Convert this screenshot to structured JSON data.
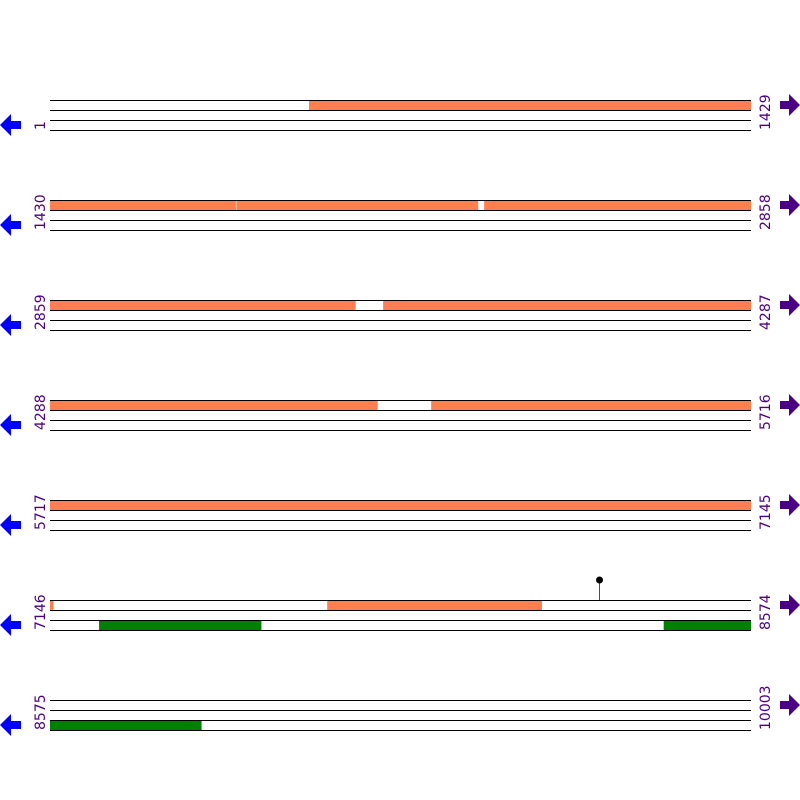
{
  "colors": {
    "orange": "#ff7f50",
    "green": "#008000",
    "left_arrow": "#0000ff",
    "right_arrow": "#4b0082",
    "label": "#4b0082",
    "marker_stem": "#ff0000"
  },
  "rows": [
    {
      "start": 1,
      "end": 1429,
      "top": [
        {
          "from": 529,
          "to": 1429,
          "color": "orange"
        }
      ],
      "bottom": []
    },
    {
      "start": 1430,
      "end": 2858,
      "top": [
        {
          "from": 1430,
          "to": 1808,
          "color": "orange"
        },
        {
          "from": 1810,
          "to": 2302,
          "color": "orange"
        },
        {
          "from": 2315,
          "to": 2858,
          "color": "orange"
        }
      ],
      "bottom": []
    },
    {
      "start": 2859,
      "end": 4287,
      "top": [
        {
          "from": 2859,
          "to": 3481,
          "color": "orange"
        },
        {
          "from": 3538,
          "to": 4287,
          "color": "orange"
        }
      ],
      "bottom": []
    },
    {
      "start": 4288,
      "end": 5716,
      "top": [
        {
          "from": 4288,
          "to": 4955,
          "color": "orange"
        },
        {
          "from": 5065,
          "to": 5716,
          "color": "orange"
        }
      ],
      "bottom": []
    },
    {
      "start": 5717,
      "end": 7145,
      "top": [
        {
          "from": 5717,
          "to": 7145,
          "color": "orange"
        }
      ],
      "bottom": []
    },
    {
      "start": 7146,
      "end": 8574,
      "top": [
        {
          "from": 7146,
          "to": 7152,
          "color": "orange"
        },
        {
          "from": 7711,
          "to": 8148,
          "color": "orange"
        }
      ],
      "bottom": [
        {
          "from": 7246,
          "to": 7576,
          "color": "green"
        },
        {
          "from": 8397,
          "to": 8574,
          "color": "green"
        }
      ],
      "markers": [
        8266
      ]
    },
    {
      "start": 8575,
      "end": 10003,
      "top": [],
      "bottom": [
        {
          "from": 8575,
          "to": 8883,
          "color": "green"
        }
      ]
    }
  ]
}
